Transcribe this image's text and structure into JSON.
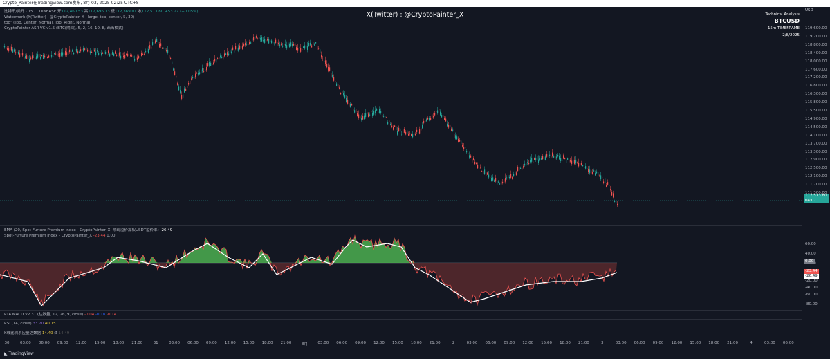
{
  "top_bar": {
    "text": "Crypto_Painter在TradingView.com发布, 8月 03, 2025 02:25 UTC+8"
  },
  "main_legend": {
    "symbol": "比特币/美元 · 15 · COINBASE",
    "o_label": "开",
    "o_value": "112,460.53",
    "h_label": "高",
    "h_value": "112,696.13",
    "l_label": "低",
    "l_value": "112,369.01",
    "c_label": "收",
    "c_value": "112,513.80",
    "change": "+53.27 (+0.05%)",
    "line2": "Watermark (X(Twitter) : @CryptoPainter_X , large, top, center, 5, 30)",
    "line3": "too\" (Top, Center, Normal, Top, Right, Normal)",
    "line4": "CryptoPainter ASR-VC v1.5 (BTC(期间), 5, 2, 16, 10, 8, 画画模式)"
  },
  "watermark": {
    "text": "X(Twitter) : @CryptoPainter_X"
  },
  "infobox": {
    "title": "Technical Analysis",
    "symbol": "BTCUSD",
    "timeframe": "15m TIMEFRAME",
    "date": "2/8/2025"
  },
  "price_axis": {
    "currency": "USD",
    "labels": [
      "119,600.00",
      "119,200.00",
      "118,800.00",
      "118,400.00",
      "118,000.00",
      "117,600.00",
      "117,200.00",
      "116,800.00",
      "116,300.00",
      "115,800.00",
      "115,500.00",
      "114,900.00",
      "114,500.00",
      "114,100.00",
      "113,700.00",
      "113,300.00",
      "112,900.00",
      "112,500.00",
      "112,100.00",
      "111,700.00",
      "111,300.00",
      "110,925.00"
    ],
    "last_price": "112,513.80",
    "countdown": "04:07"
  },
  "premium_legend": {
    "line1_prefix": "EMA (20, Spot-Furture Premium Index - CryptoPainter_X: 期现溢价加权USDT溢价率)",
    "line1_value": "-26.49",
    "line2_prefix": "Spot-Furture Premium Index - CryptoPainter_X",
    "line2_value1": "-23.44",
    "line2_value2": "0.00"
  },
  "premium_axis": {
    "labels": [
      "60.00",
      "40.00",
      "20.00",
      "0.00",
      "-20.00",
      "-40.00",
      "-60.00",
      "-80.00"
    ],
    "tag_zero": "0.00",
    "tag_index": "-23.44",
    "tag_ema": "-26.49"
  },
  "macd_legend": {
    "prefix": "RTA MACD V2.31 (柱数量, 12, 26, 9, close)",
    "v1": "-0.04",
    "v2": "-0.18",
    "v3": "-0.14"
  },
  "rsi_legend": {
    "prefix": "RSI (14, close)",
    "v1": "33.70",
    "v2": "40.15"
  },
  "vol_legend": {
    "prefix": "K线比例系应量达数据",
    "v1": "14.49",
    "v2": "Ø",
    "v3": "14.49"
  },
  "time_axis": [
    "30",
    "03:00",
    "06:00",
    "09:00",
    "12:00",
    "15:00",
    "18:00",
    "21:00",
    "31",
    "03:00",
    "06:00",
    "09:00",
    "12:00",
    "15:00",
    "18:00",
    "21:00",
    "8月",
    "03:00",
    "06:00",
    "09:00",
    "12:00",
    "15:00",
    "18:00",
    "21:00",
    "2",
    "03:00",
    "06:00",
    "09:00",
    "12:00",
    "15:00",
    "18:00",
    "21:00",
    "3",
    "03:00",
    "06:00",
    "09:00",
    "12:00",
    "15:00",
    "18:00",
    "21:00",
    "4",
    "03:00",
    "06:00"
  ],
  "footer": {
    "brand": "TradingView"
  },
  "colors": {
    "up": "#26a69a",
    "down": "#ef5350",
    "premium_pos": "#4caf50",
    "premium_neg": "#5d2a2e",
    "ema": "#ffffff"
  }
}
